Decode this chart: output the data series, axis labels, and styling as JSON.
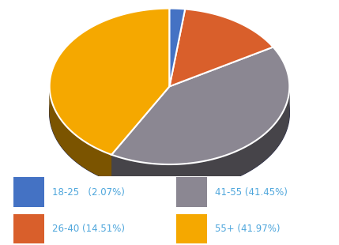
{
  "labels": [
    "18-25",
    "26-40",
    "41-55",
    "55+"
  ],
  "values": [
    2.07,
    14.51,
    41.45,
    41.97
  ],
  "colors": [
    "#4472C4",
    "#D95F2B",
    "#8B8792",
    "#F5A800"
  ],
  "side_colors": [
    "#2A4A8A",
    "#8A3A18",
    "#3D3A42",
    "#9A6A00"
  ],
  "depth_color": "#2E3150",
  "text_color": "#4EA6DC",
  "background_color": "#FFFFFF",
  "legend_items": [
    {
      "label": "18-25   (2.07%)",
      "color": "#4472C4"
    },
    {
      "label": "41-55 (41.45%)",
      "color": "#8B8792"
    },
    {
      "label": "26-40 (14.51%)",
      "color": "#D95F2B"
    },
    {
      "label": "55+ (41.97%)",
      "color": "#F5A800"
    }
  ],
  "startangle": 90,
  "figsize": [
    4.29,
    3.1
  ],
  "dpi": 100
}
